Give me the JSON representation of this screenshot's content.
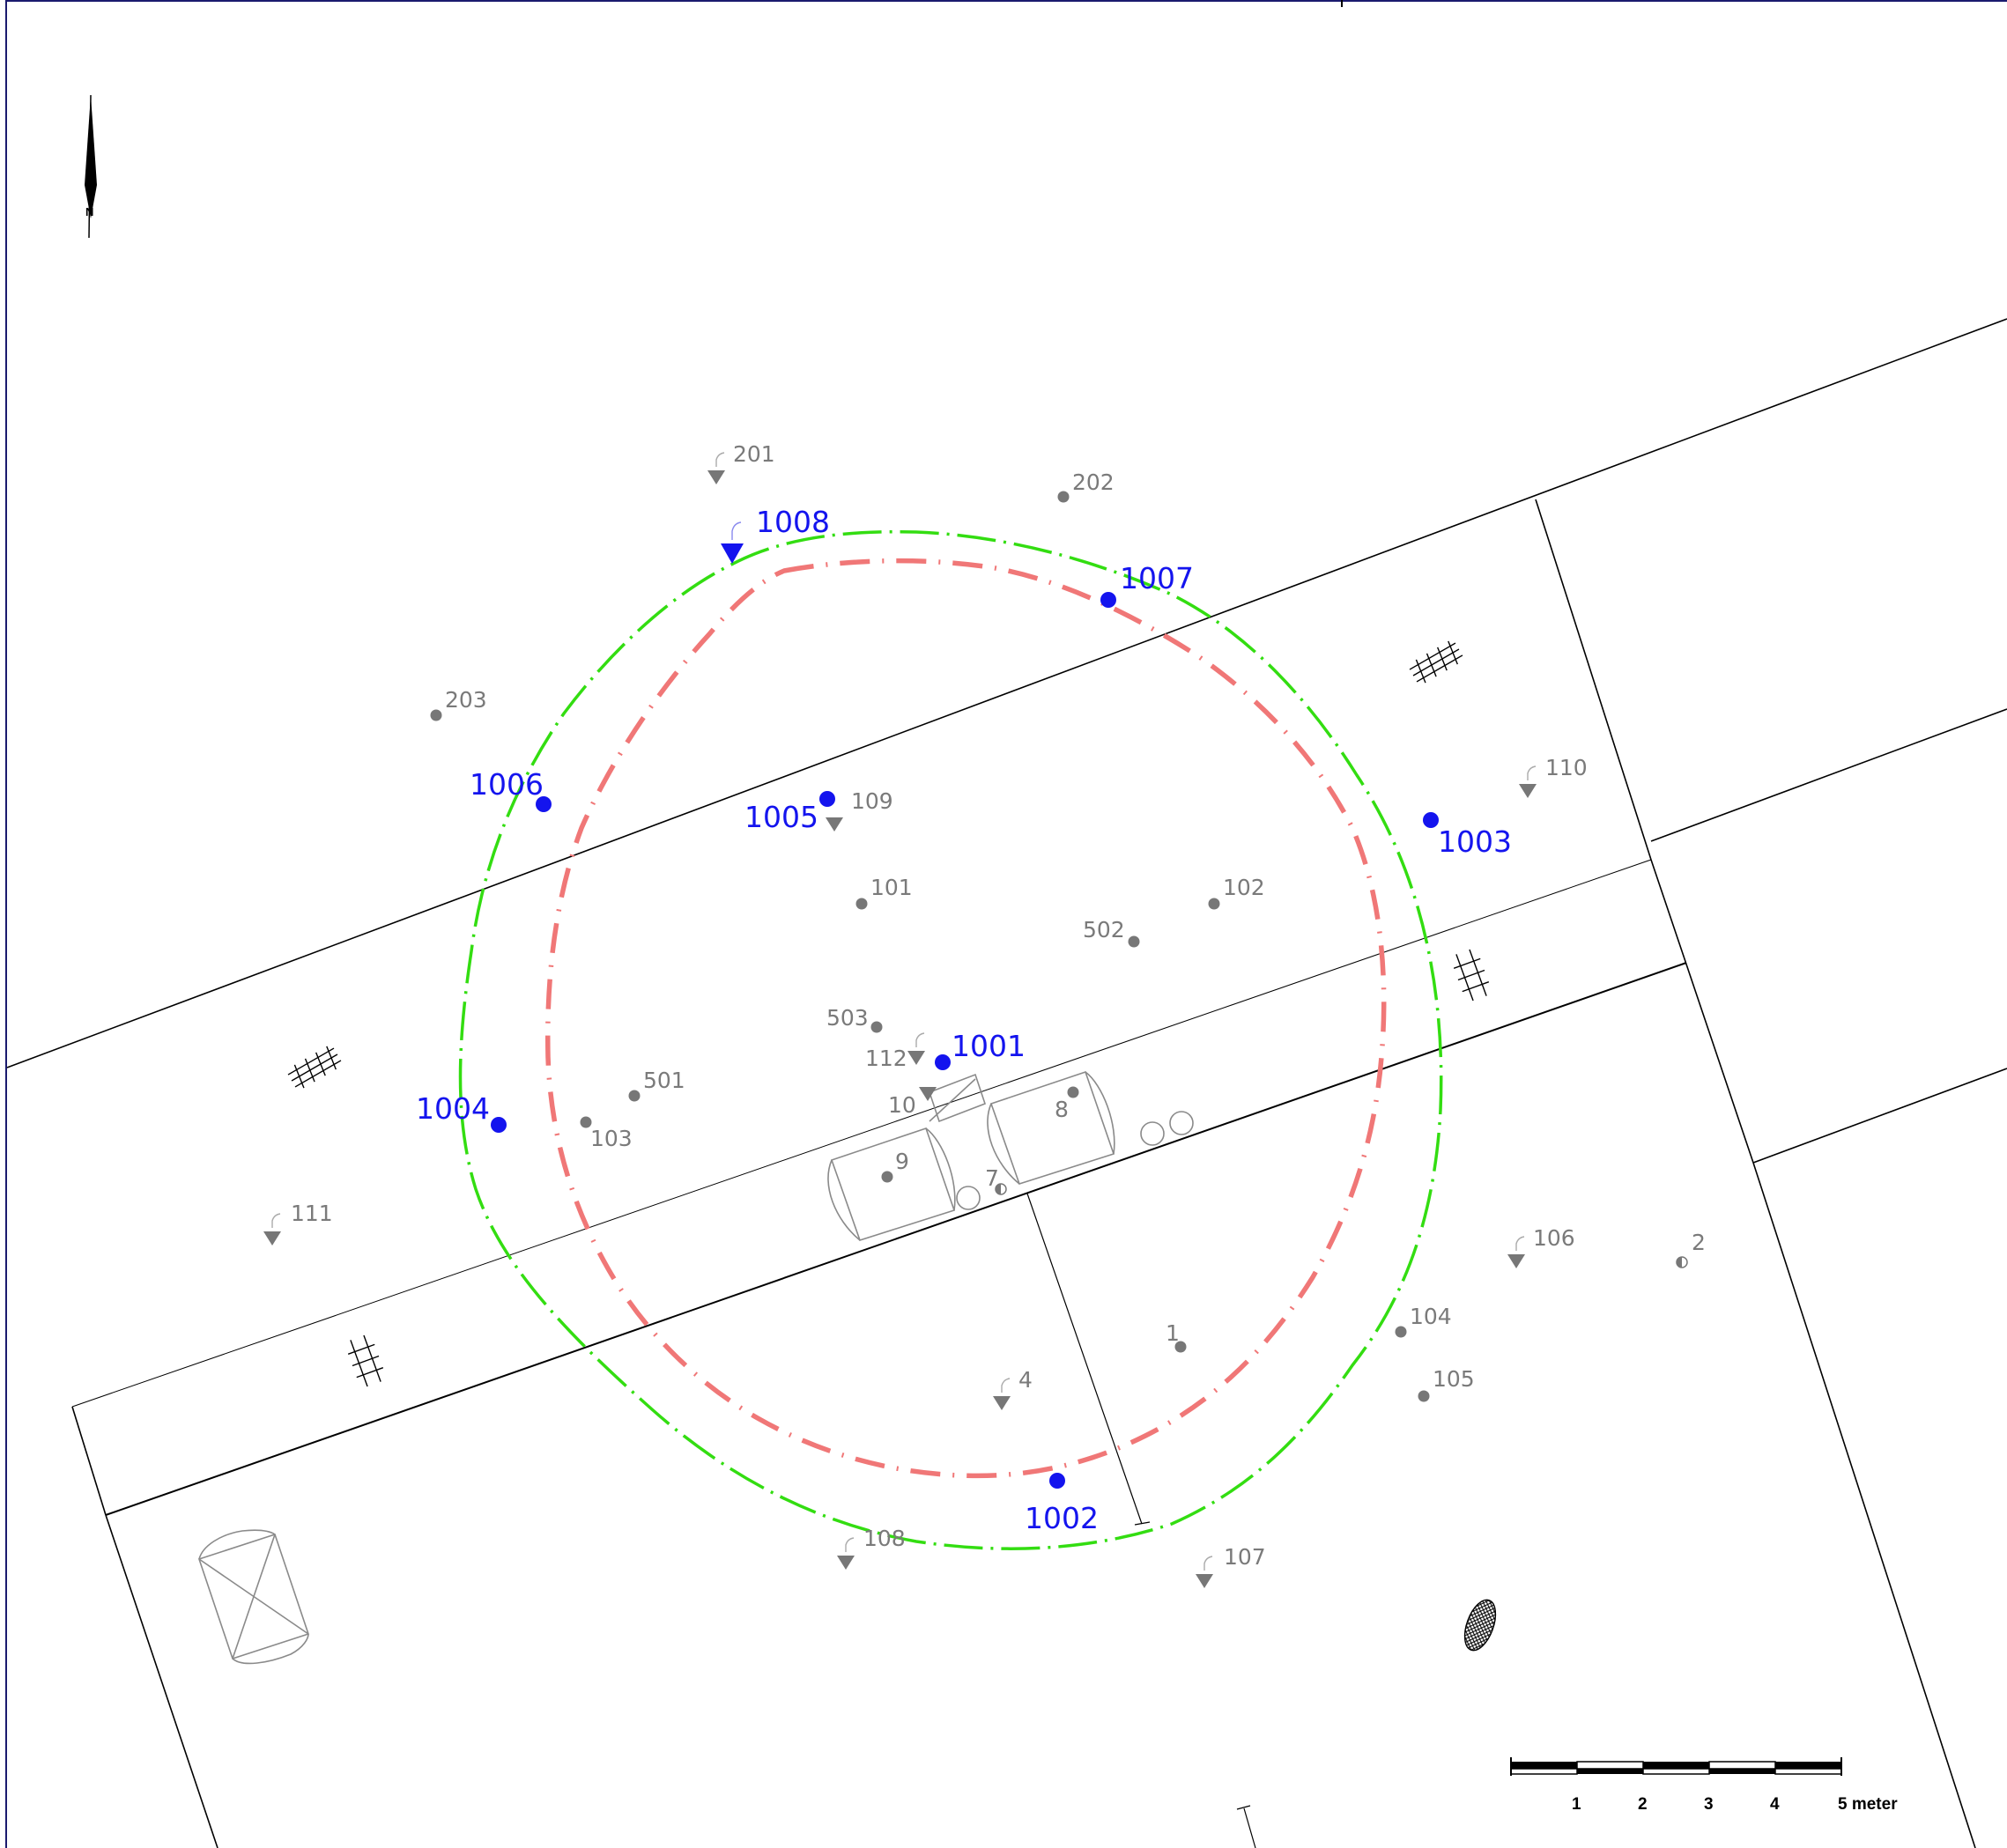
{
  "colors": {
    "outer_boundary": "#33dd11",
    "inner_boundary": "#f07777",
    "control_point": "#1414ee",
    "survey_point": "#777777",
    "lines": "#000000",
    "frame": "#1a1a6e"
  },
  "north_arrow": {
    "label": "N",
    "icon": "north-arrow-icon"
  },
  "control_points": [
    {
      "id": "1001",
      "label": "1001",
      "symbol": "dot"
    },
    {
      "id": "1002",
      "label": "1002",
      "symbol": "dot"
    },
    {
      "id": "1003",
      "label": "1003",
      "symbol": "dot"
    },
    {
      "id": "1004",
      "label": "1004",
      "symbol": "dot"
    },
    {
      "id": "1005",
      "label": "1005",
      "symbol": "dot"
    },
    {
      "id": "1006",
      "label": "1006",
      "symbol": "dot"
    },
    {
      "id": "1007",
      "label": "1007",
      "symbol": "dot"
    },
    {
      "id": "1008",
      "label": "1008",
      "symbol": "triangle"
    }
  ],
  "survey_points": [
    {
      "label": "201",
      "symbol": "triangle"
    },
    {
      "label": "202",
      "symbol": "dot"
    },
    {
      "label": "203",
      "symbol": "dot"
    },
    {
      "label": "109",
      "symbol": "triangle"
    },
    {
      "label": "110",
      "symbol": "triangle"
    },
    {
      "label": "101",
      "symbol": "dot"
    },
    {
      "label": "102",
      "symbol": "dot"
    },
    {
      "label": "502",
      "symbol": "dot"
    },
    {
      "label": "503",
      "symbol": "dot"
    },
    {
      "label": "112",
      "symbol": "triangle"
    },
    {
      "label": "10",
      "symbol": "triangle"
    },
    {
      "label": "501",
      "symbol": "dot"
    },
    {
      "label": "103",
      "symbol": "dot"
    },
    {
      "label": "8",
      "symbol": "dot"
    },
    {
      "label": "9",
      "symbol": "dot"
    },
    {
      "label": "7",
      "symbol": "half-circle"
    },
    {
      "label": "111",
      "symbol": "triangle"
    },
    {
      "label": "106",
      "symbol": "triangle"
    },
    {
      "label": "2",
      "symbol": "half-circle"
    },
    {
      "label": "104",
      "symbol": "dot"
    },
    {
      "label": "105",
      "symbol": "dot"
    },
    {
      "label": "1",
      "symbol": "dot"
    },
    {
      "label": "4",
      "symbol": "triangle"
    },
    {
      "label": "108",
      "symbol": "triangle"
    },
    {
      "label": "107",
      "symbol": "triangle"
    }
  ],
  "scale_bar": {
    "ticks": [
      "1",
      "2",
      "3",
      "4",
      "5 meter"
    ],
    "units": "meter",
    "length": 5
  }
}
